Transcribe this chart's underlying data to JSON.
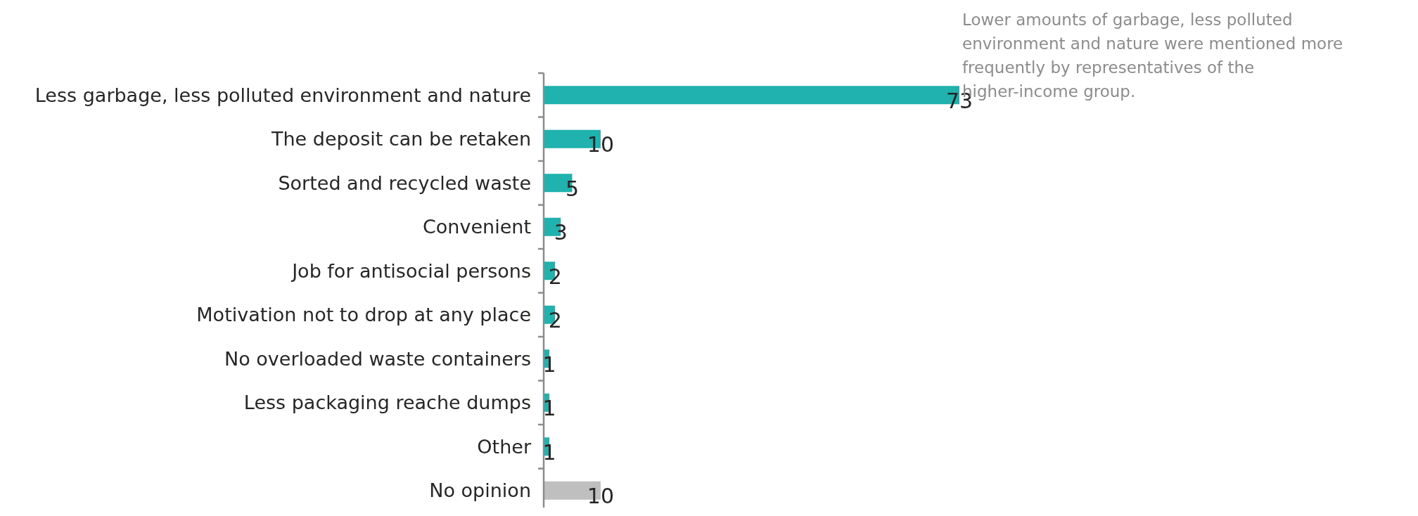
{
  "chart_data": {
    "type": "bar",
    "orientation": "horizontal",
    "categories": [
      "Less garbage, less polluted environment and nature",
      "The deposit can be retaken",
      "Sorted and recycled waste",
      "Convenient",
      "Job for antisocial persons",
      "Motivation not to drop at any place",
      "No overloaded waste containers",
      "Less packaging reache dumps",
      "Other",
      "No opinion"
    ],
    "values": [
      73,
      10,
      5,
      3,
      2,
      2,
      1,
      1,
      1,
      10
    ],
    "colors": [
      "#1fb2ae",
      "#1fb2ae",
      "#1fb2ae",
      "#1fb2ae",
      "#1fb2ae",
      "#1fb2ae",
      "#1fb2ae",
      "#1fb2ae",
      "#1fb2ae",
      "#bfbfbf"
    ],
    "data_labels": true,
    "annotations": [
      "Lower amounts of garbage, less polluted environment and nature were mentioned more frequently by representatives of the higher-income group."
    ]
  }
}
